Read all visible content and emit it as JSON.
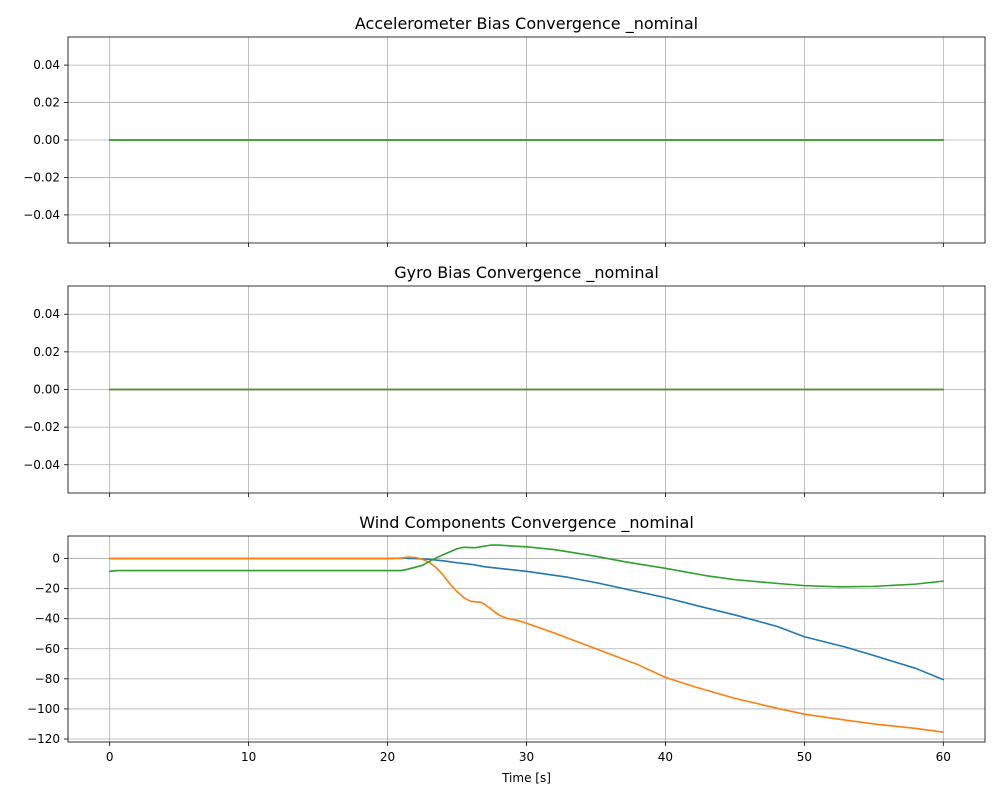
{
  "chart_data": [
    {
      "type": "line",
      "title": "Accelerometer Bias Convergence _nominal",
      "xlabel": "",
      "ylabel": "",
      "xlim": [
        -3,
        63
      ],
      "ylim": [
        -0.055,
        0.055
      ],
      "xticks": [
        0,
        10,
        20,
        30,
        40,
        50,
        60
      ],
      "yticks": [
        -0.04,
        -0.02,
        0.0,
        0.02,
        0.04
      ],
      "ytick_labels": [
        "−0.04",
        "−0.02",
        "0.00",
        "0.02",
        "0.04"
      ],
      "xtick_labels_visible": false,
      "grid": true,
      "series": [
        {
          "color": "#1f77b4",
          "points": [
            [
              0,
              0
            ],
            [
              60,
              0
            ]
          ]
        },
        {
          "color": "#ff7f0e",
          "points": [
            [
              0,
              0
            ],
            [
              60,
              0
            ]
          ]
        },
        {
          "color": "#2ca02c",
          "points": [
            [
              0,
              0
            ],
            [
              60,
              0
            ]
          ]
        }
      ]
    },
    {
      "type": "line",
      "title": "Gyro Bias Convergence _nominal",
      "xlabel": "",
      "ylabel": "",
      "xlim": [
        -3,
        63
      ],
      "ylim": [
        -0.055,
        0.055
      ],
      "xticks": [
        0,
        10,
        20,
        30,
        40,
        50,
        60
      ],
      "yticks": [
        -0.04,
        -0.02,
        0.0,
        0.02,
        0.04
      ],
      "ytick_labels": [
        "−0.04",
        "−0.02",
        "0.00",
        "0.02",
        "0.04"
      ],
      "xtick_labels_visible": false,
      "grid": true,
      "series": [
        {
          "color": "#1f77b4",
          "points": [
            [
              0,
              0
            ],
            [
              60,
              0
            ]
          ]
        },
        {
          "color": "#ff7f0e",
          "points": [
            [
              0,
              0
            ],
            [
              60,
              0
            ]
          ]
        },
        {
          "color": "#2ca02c",
          "points": [
            [
              0,
              0
            ],
            [
              60,
              0
            ]
          ]
        }
      ]
    },
    {
      "type": "line",
      "title": "Wind Components Convergence _nominal",
      "xlabel": "Time [s]",
      "ylabel": "",
      "xlim": [
        -3,
        63
      ],
      "ylim": [
        -122,
        15
      ],
      "xticks": [
        0,
        10,
        20,
        30,
        40,
        50,
        60
      ],
      "xtick_labels": [
        "0",
        "10",
        "20",
        "30",
        "40",
        "50",
        "60"
      ],
      "yticks": [
        -120,
        -100,
        -80,
        -60,
        -40,
        -20,
        0
      ],
      "ytick_labels": [
        "−120",
        "−100",
        "−80",
        "−60",
        "−40",
        "−20",
        "0"
      ],
      "xtick_labels_visible": true,
      "grid": true,
      "series": [
        {
          "color": "#1f77b4",
          "points": [
            [
              0,
              0
            ],
            [
              20,
              0
            ],
            [
              21,
              0.2
            ],
            [
              22,
              0
            ],
            [
              23,
              -0.5
            ],
            [
              24,
              -1.5
            ],
            [
              25,
              -2.8
            ],
            [
              26,
              -3.8
            ],
            [
              27,
              -5.5
            ],
            [
              28,
              -6.5
            ],
            [
              30,
              -8.5
            ],
            [
              31,
              -9.8
            ],
            [
              33,
              -12.5
            ],
            [
              35,
              -16
            ],
            [
              37,
              -20
            ],
            [
              40,
              -26
            ],
            [
              43,
              -33
            ],
            [
              45,
              -37.5
            ],
            [
              48,
              -45
            ],
            [
              50,
              -52
            ],
            [
              53,
              -59
            ],
            [
              55,
              -64.5
            ],
            [
              58,
              -73
            ],
            [
              60,
              -80.5
            ]
          ]
        },
        {
          "color": "#ff7f0e",
          "points": [
            [
              0,
              0
            ],
            [
              20,
              0
            ],
            [
              21,
              0.3
            ],
            [
              21.5,
              1
            ],
            [
              22,
              0.7
            ],
            [
              22.5,
              -0.5
            ],
            [
              23,
              -2.5
            ],
            [
              23.5,
              -6
            ],
            [
              24,
              -11
            ],
            [
              24.5,
              -17
            ],
            [
              25,
              -22
            ],
            [
              25.5,
              -26
            ],
            [
              26,
              -28.5
            ],
            [
              26.7,
              -29
            ],
            [
              27,
              -30.5
            ],
            [
              27.5,
              -34
            ],
            [
              28,
              -37.5
            ],
            [
              28.5,
              -39.5
            ],
            [
              29.5,
              -41.5
            ],
            [
              30,
              -43
            ],
            [
              32,
              -49.5
            ],
            [
              35,
              -60
            ],
            [
              38,
              -70.5
            ],
            [
              40,
              -79
            ],
            [
              42,
              -85
            ],
            [
              45,
              -93
            ],
            [
              48,
              -99.5
            ],
            [
              50,
              -103.5
            ],
            [
              53,
              -107.5
            ],
            [
              55,
              -110
            ],
            [
              58,
              -113
            ],
            [
              60,
              -115.5
            ]
          ]
        },
        {
          "color": "#2ca02c",
          "points": [
            [
              0,
              -8.5
            ],
            [
              0.5,
              -8
            ],
            [
              20,
              -8
            ],
            [
              21,
              -8
            ],
            [
              21.5,
              -7
            ],
            [
              22.5,
              -4.5
            ],
            [
              23.5,
              0.5
            ],
            [
              24.5,
              4.5
            ],
            [
              25,
              6.5
            ],
            [
              25.5,
              7.5
            ],
            [
              26.3,
              7.2
            ],
            [
              27,
              8.3
            ],
            [
              27.5,
              9
            ],
            [
              28,
              9
            ],
            [
              29,
              8.3
            ],
            [
              30,
              7.8
            ],
            [
              32,
              6
            ],
            [
              35,
              1.5
            ],
            [
              37,
              -2
            ],
            [
              40,
              -6.5
            ],
            [
              43,
              -11.5
            ],
            [
              45,
              -14
            ],
            [
              48,
              -16.5
            ],
            [
              50,
              -18
            ],
            [
              52.5,
              -18.8
            ],
            [
              55,
              -18.5
            ],
            [
              58,
              -17
            ],
            [
              60,
              -15
            ]
          ]
        }
      ]
    }
  ]
}
